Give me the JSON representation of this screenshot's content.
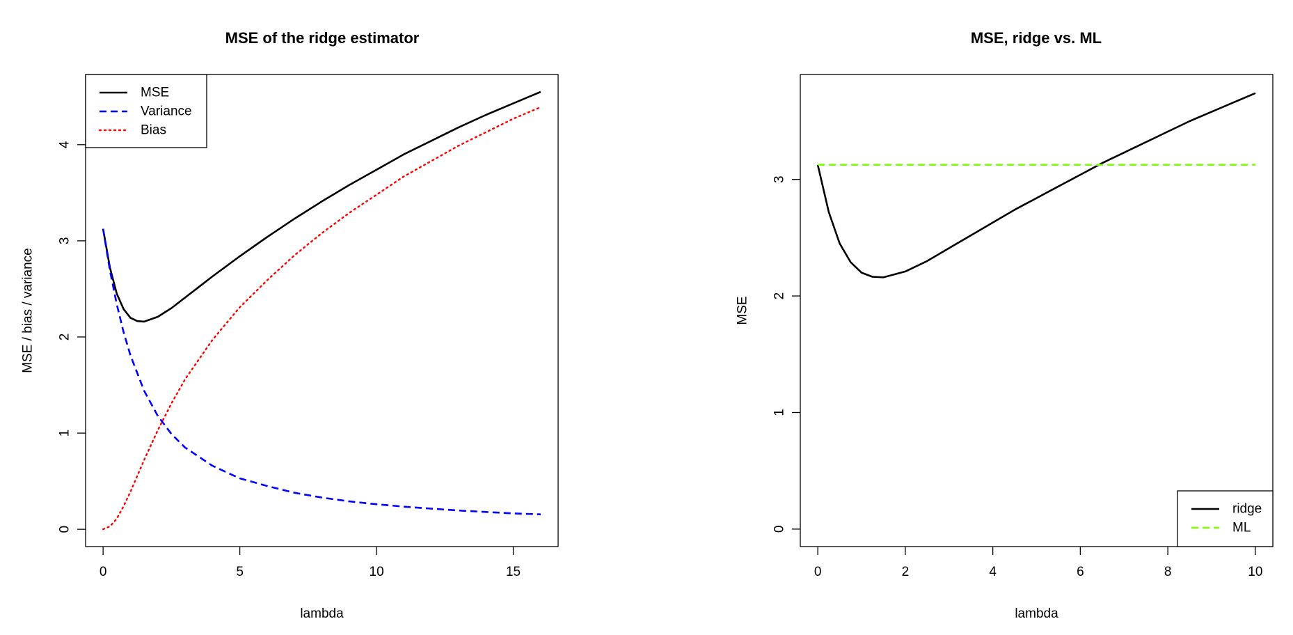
{
  "chart_data": [
    {
      "type": "line",
      "title": "MSE of the ridge estimator",
      "xlabel": "lambda",
      "ylabel": "MSE / bias / variance",
      "xlim": [
        -0.64,
        16.64
      ],
      "ylim": [
        -0.18,
        4.73
      ],
      "xticks": [
        "0",
        "5",
        "10",
        "15"
      ],
      "yticks": [
        "0",
        "1",
        "2",
        "3",
        "4"
      ],
      "grid": false,
      "legend": "top-left",
      "series": [
        {
          "name": "MSE",
          "color": "#000000",
          "style": "solid",
          "x": [
            0,
            0.25,
            0.5,
            0.75,
            1,
            1.25,
            1.5,
            2,
            2.5,
            3,
            3.5,
            4,
            5,
            6,
            7,
            8,
            9,
            10,
            11,
            12,
            13,
            14,
            15,
            16
          ],
          "y": [
            3.125,
            2.72,
            2.45,
            2.29,
            2.2,
            2.165,
            2.16,
            2.21,
            2.3,
            2.41,
            2.52,
            2.63,
            2.84,
            3.04,
            3.23,
            3.41,
            3.58,
            3.74,
            3.9,
            4.04,
            4.18,
            4.31,
            4.43,
            4.55
          ]
        },
        {
          "name": "Variance",
          "color": "#0000ff",
          "style": "dashed",
          "x": [
            0,
            0.25,
            0.5,
            0.75,
            1,
            1.5,
            2,
            2.5,
            3,
            4,
            5,
            6,
            7,
            8,
            9,
            10,
            11,
            12,
            13,
            14,
            15,
            16
          ],
          "y": [
            3.125,
            2.69,
            2.34,
            2.05,
            1.81,
            1.44,
            1.18,
            0.99,
            0.85,
            0.66,
            0.53,
            0.45,
            0.38,
            0.33,
            0.29,
            0.26,
            0.235,
            0.215,
            0.195,
            0.18,
            0.165,
            0.155
          ]
        },
        {
          "name": "Bias",
          "color": "#ff0000",
          "style": "dotted",
          "x": [
            0,
            0.25,
            0.5,
            0.75,
            1,
            1.5,
            2,
            2.5,
            3,
            4,
            5,
            6,
            7,
            8,
            9,
            10,
            11,
            12,
            13,
            14,
            15,
            16
          ],
          "y": [
            0,
            0.03,
            0.11,
            0.24,
            0.39,
            0.72,
            1.03,
            1.31,
            1.56,
            1.97,
            2.31,
            2.59,
            2.85,
            3.08,
            3.29,
            3.48,
            3.67,
            3.83,
            3.99,
            4.13,
            4.27,
            4.39
          ]
        }
      ]
    },
    {
      "type": "line",
      "title": "MSE, ridge vs. ML",
      "xlabel": "lambda",
      "ylabel": "MSE",
      "xlim": [
        -0.4,
        10.4
      ],
      "ylim": [
        -0.15,
        3.9
      ],
      "xticks": [
        "0",
        "2",
        "4",
        "6",
        "8",
        "10"
      ],
      "yticks": [
        "0",
        "1",
        "2",
        "3"
      ],
      "grid": false,
      "legend": "bottom-right",
      "series": [
        {
          "name": "ridge",
          "color": "#000000",
          "style": "solid",
          "x": [
            0,
            0.25,
            0.5,
            0.75,
            1,
            1.25,
            1.5,
            2,
            2.5,
            3,
            3.5,
            4,
            4.5,
            5,
            5.5,
            6,
            6.5,
            7,
            7.5,
            8,
            8.5,
            9,
            9.5,
            10
          ],
          "y": [
            3.125,
            2.72,
            2.45,
            2.29,
            2.2,
            2.165,
            2.16,
            2.21,
            2.3,
            2.41,
            2.52,
            2.63,
            2.74,
            2.84,
            2.94,
            3.04,
            3.14,
            3.23,
            3.32,
            3.41,
            3.5,
            3.58,
            3.66,
            3.74
          ]
        },
        {
          "name": "ML",
          "color": "#80ff00",
          "style": "dashed",
          "x": [
            0,
            10
          ],
          "y": [
            3.125,
            3.125
          ]
        }
      ]
    }
  ]
}
